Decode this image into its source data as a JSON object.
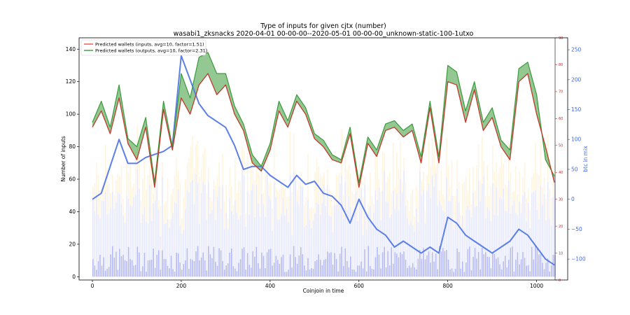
{
  "chart_data": {
    "type": "line",
    "title_line1": "Type of inputs for given cjtx (number)",
    "title_line2": "wasabi1_zksnacks 2020-04-01 00-00-00--2020-05-01 00-00-00_unknown-static-100-1utxo",
    "xlabel": "Coinjoin in time",
    "ylabel_left": "Number of inputs",
    "ylabel_right": "btc in mix",
    "xlim": [
      -30,
      1070
    ],
    "ylim_left": [
      -2,
      147
    ],
    "ylim_right_red": [
      0,
      90
    ],
    "ylim_right_blue": [
      -135,
      270
    ],
    "x_ticks": [
      0,
      200,
      400,
      600,
      800,
      1000
    ],
    "y_ticks_left": [
      0,
      20,
      40,
      60,
      80,
      100,
      120,
      140
    ],
    "y_ticks_right_red": [
      0,
      10,
      20,
      30,
      40,
      50,
      60,
      70,
      80,
      90
    ],
    "y_ticks_right_blue": [
      -100,
      -50,
      0,
      50,
      100,
      150,
      200,
      250
    ],
    "legend": [
      {
        "label": "Predicted wallets (inputs, avg=10, factor=1.51)",
        "color": "#e8554e"
      },
      {
        "label": "Predicted wallets (outputs, avg=10, factor=2.31)",
        "color": "#3a9a3a"
      }
    ],
    "legend_position": "top-left",
    "x": [
      0,
      20,
      40,
      60,
      80,
      100,
      120,
      140,
      160,
      180,
      200,
      220,
      240,
      260,
      280,
      300,
      320,
      340,
      360,
      380,
      400,
      420,
      440,
      460,
      480,
      500,
      520,
      540,
      560,
      580,
      600,
      620,
      640,
      660,
      680,
      700,
      720,
      740,
      760,
      780,
      800,
      820,
      840,
      860,
      880,
      900,
      920,
      940,
      960,
      980,
      1000,
      1020,
      1040
    ],
    "series": [
      {
        "name": "Predicted wallets (inputs, avg=10, factor=1.51)",
        "axis": "left",
        "values": [
          92,
          102,
          88,
          110,
          82,
          72,
          92,
          55,
          103,
          78,
          110,
          100,
          118,
          125,
          112,
          118,
          100,
          90,
          70,
          65,
          78,
          102,
          92,
          108,
          100,
          85,
          80,
          72,
          70,
          88,
          55,
          82,
          74,
          90,
          92,
          86,
          90,
          70,
          104,
          70,
          120,
          118,
          95,
          115,
          90,
          98,
          80,
          72,
          120,
          125,
          100,
          80,
          58
        ]
      },
      {
        "name": "Predicted wallets (outputs, avg=10, factor=2.31)",
        "axis": "left",
        "values": [
          95,
          108,
          92,
          118,
          85,
          80,
          98,
          58,
          108,
          80,
          125,
          110,
          135,
          138,
          125,
          125,
          105,
          94,
          75,
          68,
          82,
          108,
          96,
          112,
          104,
          88,
          84,
          75,
          72,
          92,
          58,
          86,
          78,
          94,
          96,
          90,
          94,
          74,
          108,
          74,
          130,
          126,
          102,
          120,
          95,
          104,
          84,
          78,
          128,
          132,
          112,
          72,
          62
        ]
      },
      {
        "name": "",
        "axis": "right_blue",
        "values": [
          0,
          10,
          55,
          100,
          60,
          60,
          70,
          75,
          80,
          90,
          240,
          200,
          160,
          140,
          130,
          120,
          90,
          50,
          55,
          55,
          40,
          30,
          20,
          40,
          25,
          30,
          10,
          5,
          -10,
          -40,
          0,
          -30,
          -50,
          -60,
          -80,
          -70,
          -80,
          -90,
          -80,
          -90,
          -30,
          -40,
          -60,
          -70,
          -80,
          -90,
          -80,
          -70,
          -50,
          -60,
          -80,
          -100,
          -110
        ]
      }
    ]
  }
}
